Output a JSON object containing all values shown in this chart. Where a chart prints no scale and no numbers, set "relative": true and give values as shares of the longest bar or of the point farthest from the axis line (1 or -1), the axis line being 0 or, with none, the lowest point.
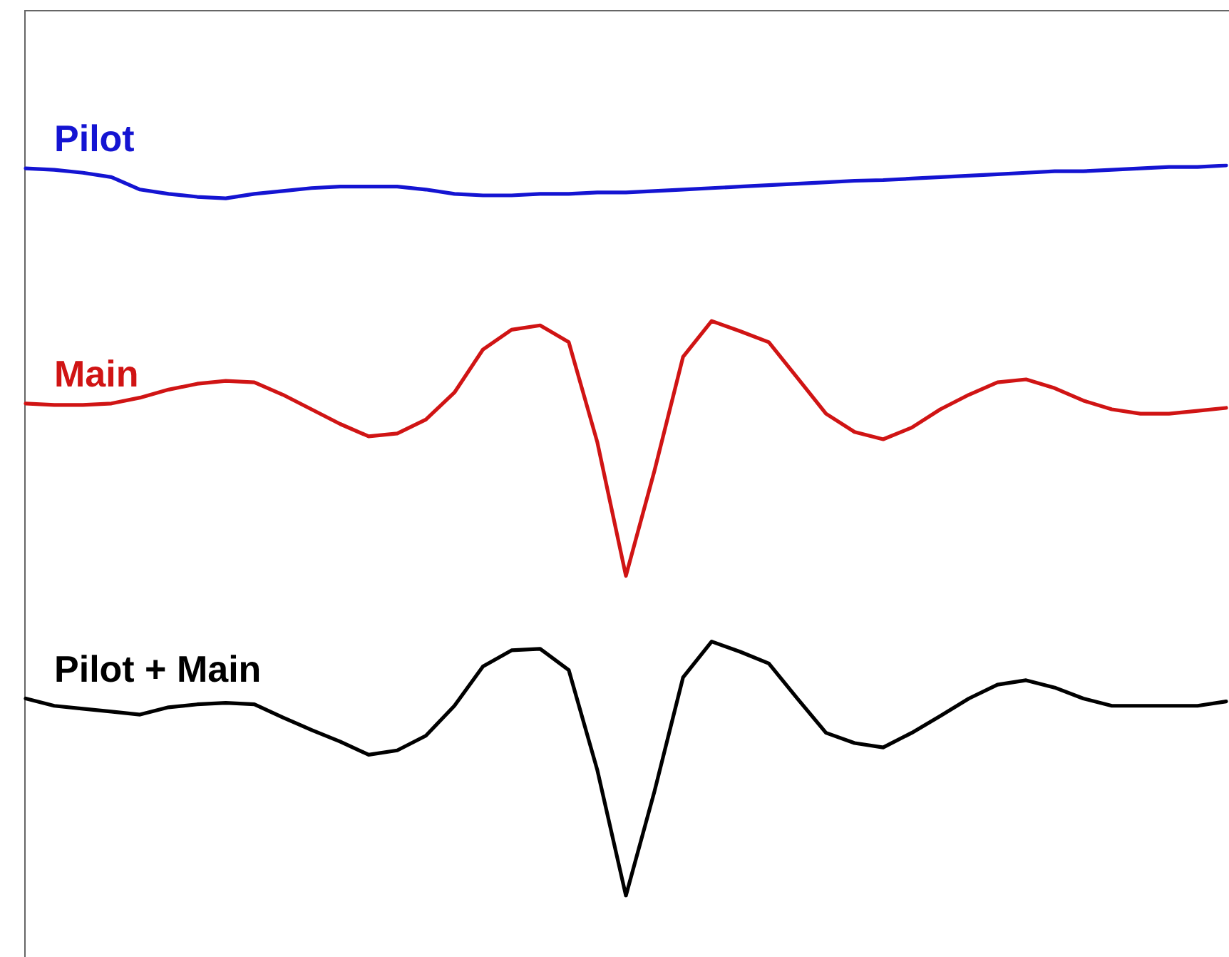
{
  "chart_data": {
    "type": "line",
    "relative": true,
    "legend": false,
    "grid": false,
    "marker": "none",
    "line_style": "solid",
    "categories": [
      null,
      null,
      null,
      null,
      null,
      null,
      null,
      null,
      null,
      null,
      null,
      null,
      null,
      null,
      null,
      null,
      null,
      null,
      null,
      null,
      null,
      null,
      null,
      null,
      null,
      null,
      null,
      null,
      null,
      null,
      null,
      null,
      null,
      null,
      null,
      null,
      null,
      null,
      null,
      null,
      null,
      null,
      null
    ],
    "series": [
      {
        "name": "Pilot",
        "color": "#1414d2",
        "values": [
          0.996,
          0.994,
          0.99,
          0.984,
          0.967,
          0.961,
          0.957,
          0.955,
          0.961,
          0.965,
          0.969,
          0.971,
          0.971,
          0.971,
          0.967,
          0.961,
          0.959,
          0.959,
          0.961,
          0.961,
          0.963,
          0.963,
          0.965,
          0.967,
          0.969,
          0.971,
          0.973,
          0.975,
          0.977,
          0.979,
          0.98,
          0.982,
          0.984,
          0.986,
          0.988,
          0.99,
          0.992,
          0.992,
          0.994,
          0.996,
          0.998,
          0.998,
          1
        ]
      },
      {
        "name": "Main",
        "color": "#d01414",
        "values": [
          0.674,
          0.672,
          0.672,
          0.674,
          0.682,
          0.693,
          0.701,
          0.705,
          0.703,
          0.686,
          0.666,
          0.646,
          0.629,
          0.633,
          0.652,
          0.689,
          0.748,
          0.775,
          0.781,
          0.758,
          0.621,
          0.438,
          0.582,
          0.738,
          0.787,
          0.773,
          0.758,
          0.709,
          0.66,
          0.635,
          0.625,
          0.641,
          0.666,
          0.686,
          0.703,
          0.707,
          0.695,
          0.678,
          0.666,
          0.66,
          0.66,
          0.664,
          0.668
        ]
      },
      {
        "name": "Pilot + Main",
        "color": "#000000",
        "values": [
          0.27,
          0.26,
          0.256,
          0.252,
          0.248,
          0.258,
          0.262,
          0.264,
          0.262,
          0.244,
          0.227,
          0.211,
          0.193,
          0.199,
          0.219,
          0.26,
          0.314,
          0.336,
          0.338,
          0.309,
          0.172,
          0,
          0.143,
          0.299,
          0.348,
          0.334,
          0.318,
          0.27,
          0.223,
          0.209,
          0.203,
          0.223,
          0.246,
          0.27,
          0.289,
          0.295,
          0.285,
          0.27,
          0.26,
          0.26,
          0.26,
          0.26,
          0.266
        ]
      }
    ]
  }
}
